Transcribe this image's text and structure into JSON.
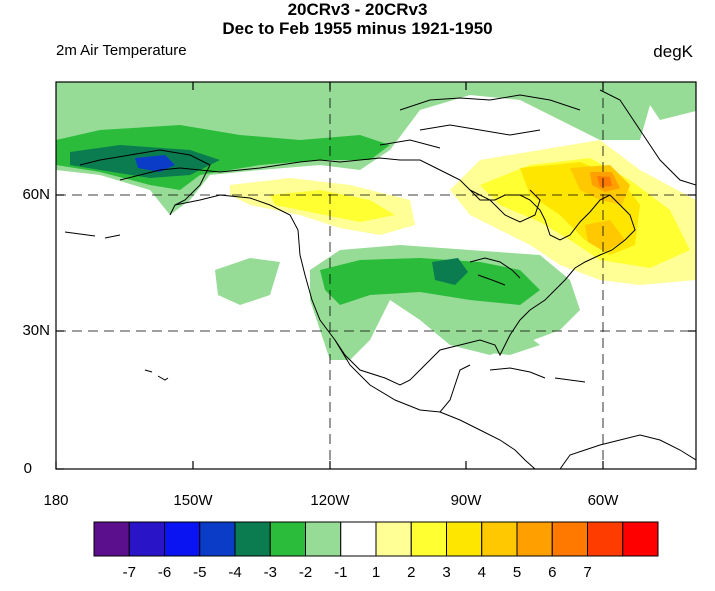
{
  "title_line1": "20CRv3 - 20CRv3",
  "title_line2": "Dec to Feb 1955 minus 1921-1950",
  "variable_label": "2m Air Temperature",
  "units_label": "degK",
  "lat_labels": [
    "60N",
    "30N",
    "0"
  ],
  "lon_labels": [
    "180",
    "150W",
    "120W",
    "90W",
    "60W"
  ],
  "colorbar": {
    "colors": [
      "#5b0f8c",
      "#2a14c8",
      "#0a14f2",
      "#0a3cc8",
      "#0a7c50",
      "#2cbc3c",
      "#96dc96",
      "#ffffff",
      "#ffff96",
      "#ffff32",
      "#ffe600",
      "#ffc800",
      "#ffa000",
      "#ff7800",
      "#ff3c00",
      "#ff0000"
    ],
    "labels": [
      "-7",
      "-6",
      "-5",
      "-4",
      "-3",
      "-2",
      "-1",
      "1",
      "2",
      "3",
      "4",
      "5",
      "6",
      "7"
    ]
  }
}
